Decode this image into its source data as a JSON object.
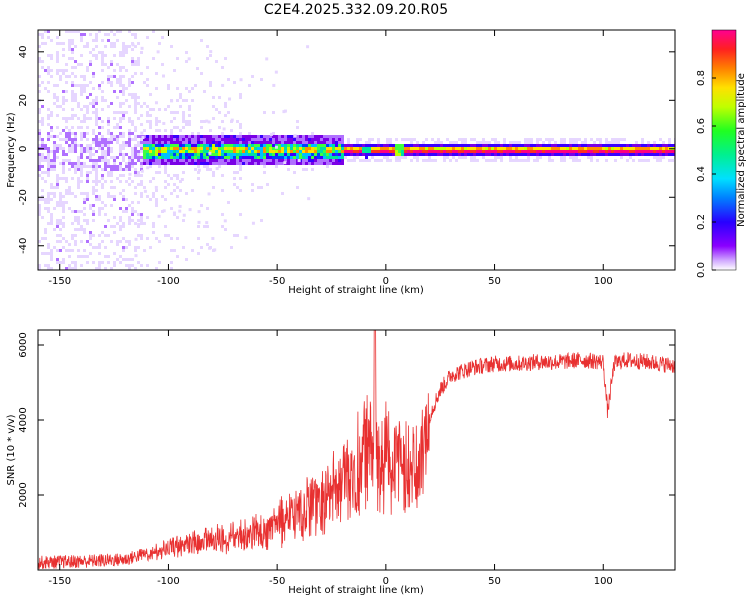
{
  "title": "C2E4.2025.332.09.20.R05",
  "colors": {
    "snr_line": "#e83030",
    "colormap": [
      "#ffffff",
      "#e6d6ff",
      "#b070ff",
      "#7a00e6",
      "#3a00ff",
      "#0040ff",
      "#00c0ff",
      "#00e0a0",
      "#40ff40",
      "#c0ff00",
      "#ffe000",
      "#ff9000",
      "#ff3020",
      "#ff0080"
    ]
  },
  "chart_data": [
    {
      "type": "heatmap",
      "name": "spectrogram",
      "xlabel": "Height of straight line (km)",
      "ylabel": "Frequency (Hz)",
      "xlim": [
        -160,
        133
      ],
      "ylim": [
        -50,
        49
      ],
      "xticks": [
        -150,
        -100,
        -50,
        0,
        50,
        100
      ],
      "yticks": [
        -40,
        -20,
        0,
        20,
        40
      ],
      "grid": false,
      "description_of_values": "narrow band of high amplitude near 0 Hz for heights > -110 km, broad noise below",
      "colorbar": {
        "label": "Normalized spectral amplitude",
        "range": [
          0.0,
          1.0
        ],
        "ticks": [
          0.0,
          0.2,
          0.4,
          0.6,
          0.8
        ]
      }
    },
    {
      "type": "line",
      "name": "snr",
      "xlabel": "Height of straight line (km)",
      "ylabel": "SNR (10 * v/v)",
      "xlim": [
        -160,
        133
      ],
      "ylim": [
        0,
        6400
      ],
      "xticks": [
        -150,
        -100,
        -50,
        0,
        50,
        100
      ],
      "yticks": [
        2000,
        4000,
        6000
      ],
      "grid": false,
      "series": [
        {
          "name": "SNR",
          "x": [
            -160,
            -140,
            -120,
            -110,
            -100,
            -90,
            -80,
            -70,
            -60,
            -50,
            -40,
            -30,
            -20,
            -15,
            -10,
            -5,
            0,
            5,
            10,
            15,
            20,
            25,
            30,
            40,
            50,
            60,
            70,
            80,
            90,
            100,
            102,
            105,
            110,
            120,
            133
          ],
          "y": [
            200,
            230,
            280,
            450,
            700,
            900,
            1000,
            1100,
            1200,
            1500,
            1900,
            2400,
            2800,
            3200,
            3700,
            3900,
            3600,
            3700,
            3300,
            3500,
            4100,
            4800,
            5200,
            5400,
            5500,
            5500,
            5550,
            5550,
            5600,
            5550,
            4200,
            5500,
            5600,
            5550,
            5450
          ]
        }
      ]
    }
  ]
}
